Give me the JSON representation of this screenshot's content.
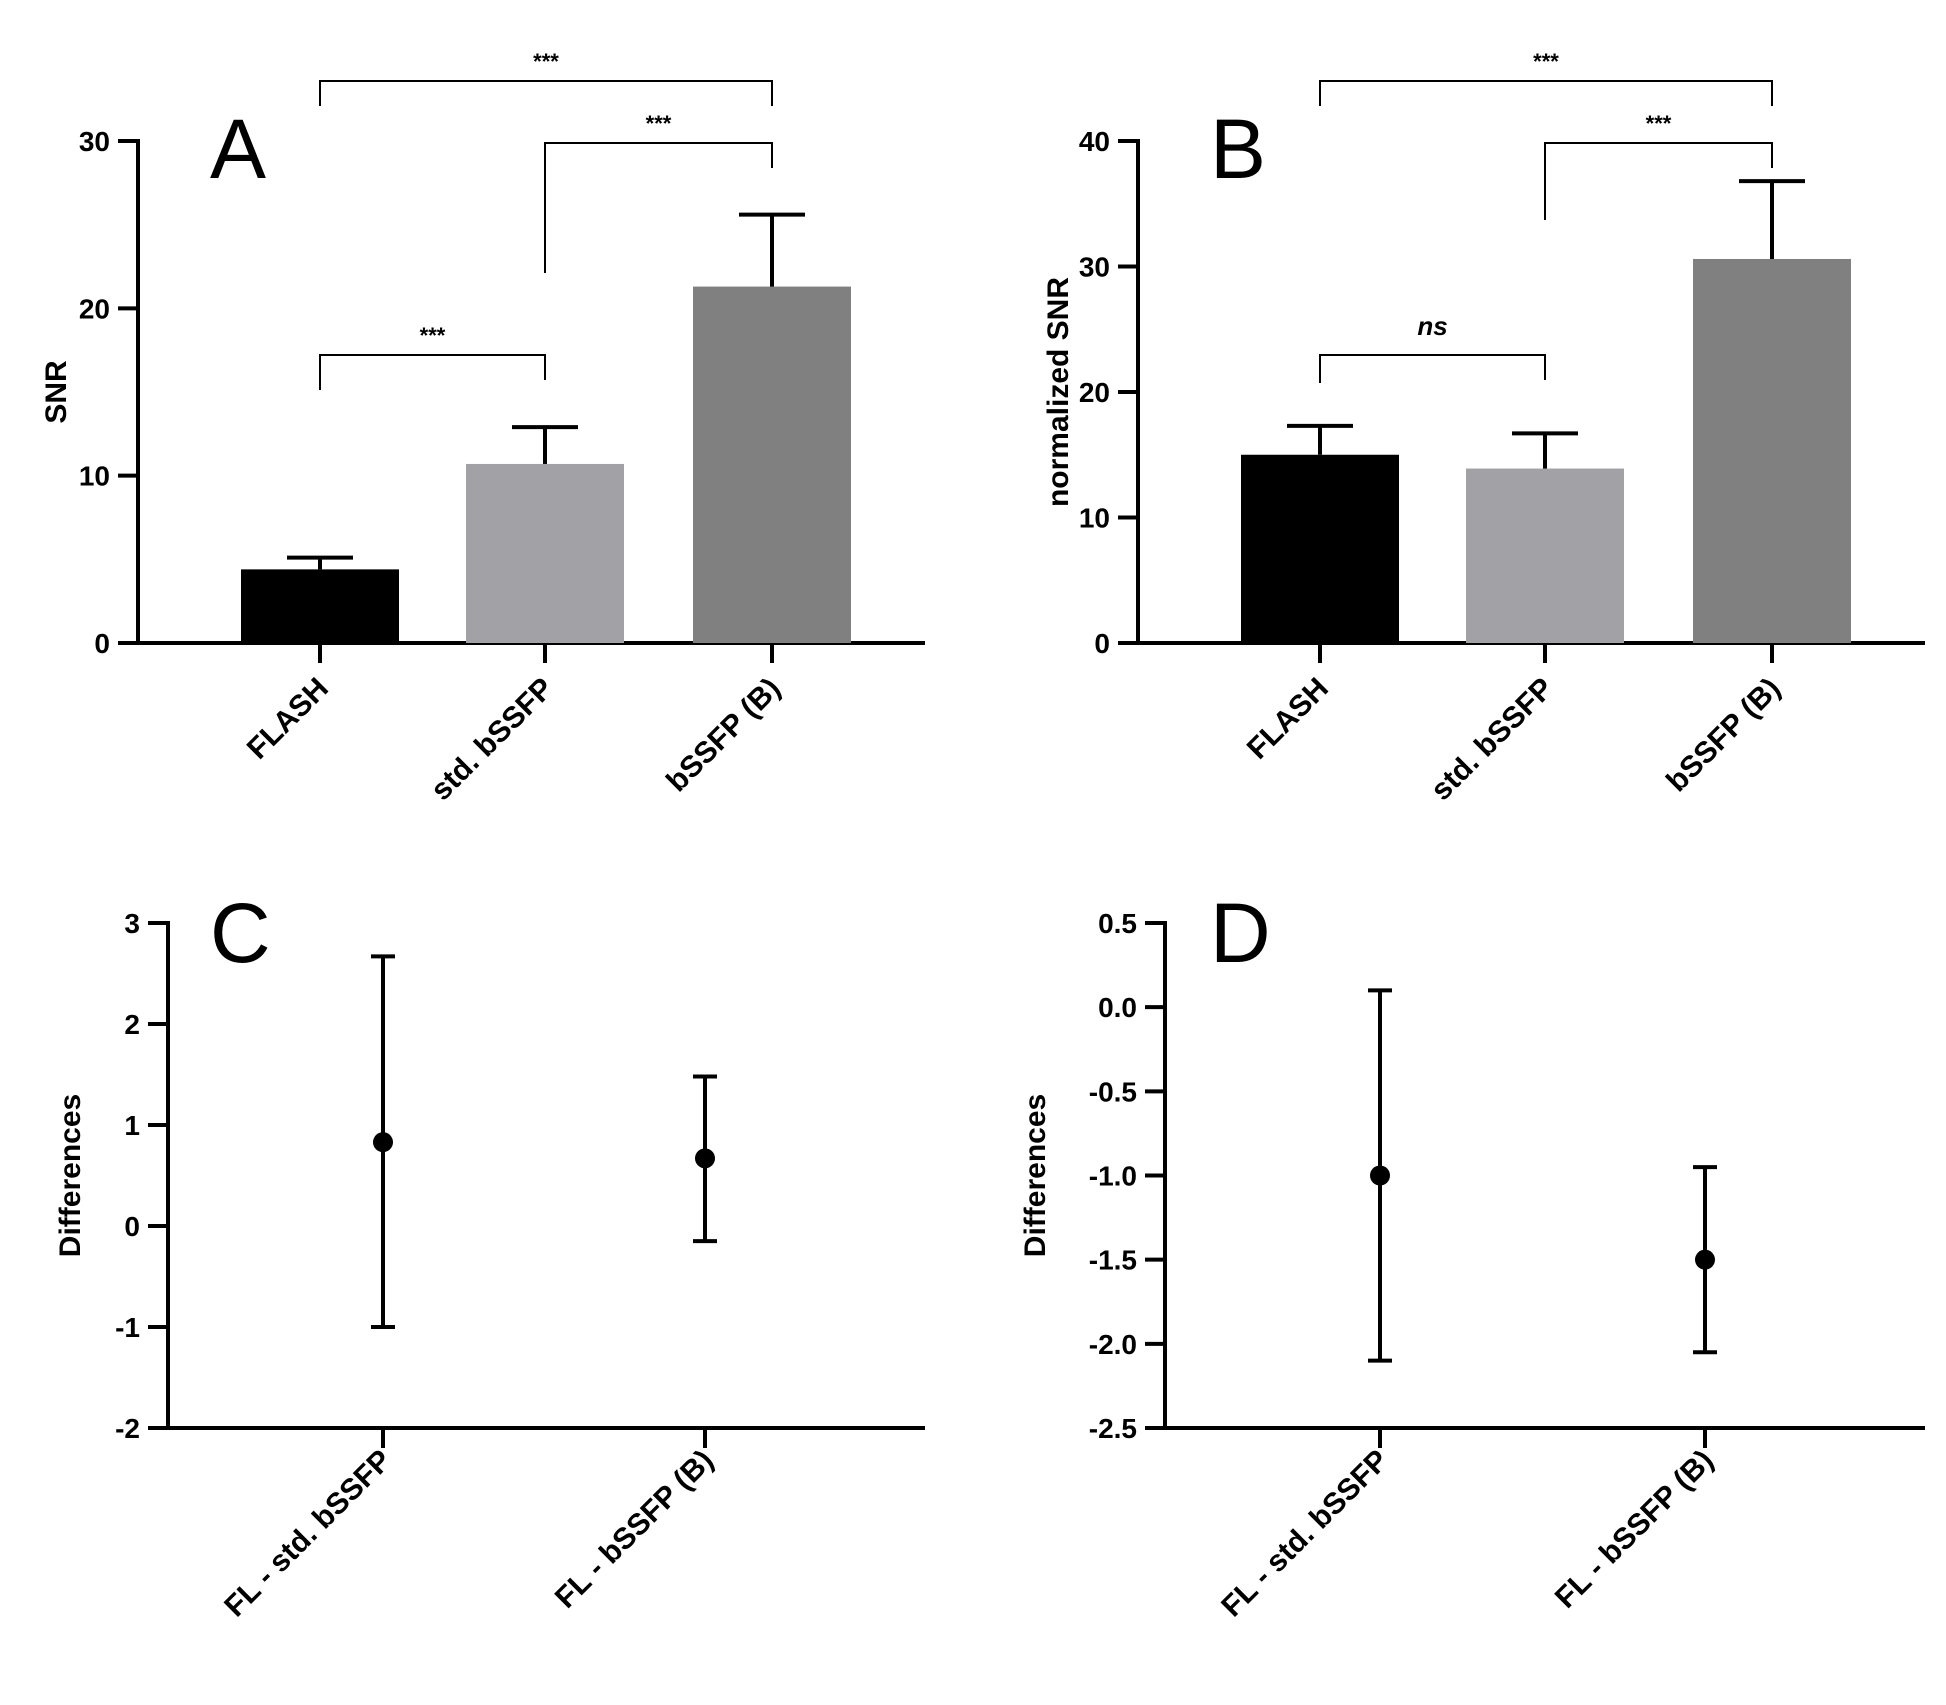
{
  "chart_data": [
    {
      "panel": "A",
      "type": "bar",
      "ylabel": "SNR",
      "ylim": [
        0,
        30
      ],
      "yticks": [
        0,
        10,
        20,
        30
      ],
      "categories": [
        "FLASH",
        "std. bSSFP",
        "bSSFP (B)"
      ],
      "values": [
        4.4,
        10.7,
        21.3
      ],
      "errors": [
        0.7,
        2.2,
        4.3
      ],
      "colors": [
        "#000000",
        "#a1a1a6",
        "#808080"
      ],
      "significance": [
        {
          "from": 0,
          "to": 1,
          "label": "***"
        },
        {
          "from": 1,
          "to": 2,
          "label": "***"
        },
        {
          "from": 0,
          "to": 2,
          "label": "***"
        }
      ]
    },
    {
      "panel": "B",
      "type": "bar",
      "ylabel": "normalized SNR",
      "ylim": [
        0,
        40
      ],
      "yticks": [
        0,
        10,
        20,
        30,
        40
      ],
      "categories": [
        "FLASH",
        "std. bSSFP",
        "bSSFP (B)"
      ],
      "values": [
        15.0,
        13.9,
        30.6
      ],
      "errors": [
        2.3,
        2.8,
        6.2
      ],
      "colors": [
        "#000000",
        "#a1a1a6",
        "#808080"
      ],
      "significance": [
        {
          "from": 0,
          "to": 1,
          "label": "ns"
        },
        {
          "from": 1,
          "to": 2,
          "label": "***"
        },
        {
          "from": 0,
          "to": 2,
          "label": "***"
        }
      ]
    },
    {
      "panel": "C",
      "type": "scatter",
      "ylabel": "Differences",
      "ylim": [
        -2,
        3
      ],
      "yticks": [
        -2,
        -1,
        0,
        1,
        2,
        3
      ],
      "ytick_labels": [
        "-2",
        "-1",
        "0",
        "1",
        "2",
        "3"
      ],
      "categories": [
        "FL - std. bSSFP",
        "FL - bSSFP (B)"
      ],
      "values": [
        0.83,
        0.67
      ],
      "lower": [
        -1.0,
        -0.15
      ],
      "upper": [
        2.67,
        1.48
      ]
    },
    {
      "panel": "D",
      "type": "scatter",
      "ylabel": "Differences",
      "ylim": [
        -2.5,
        0.5
      ],
      "yticks": [
        -2.5,
        -2.0,
        -1.5,
        -1.0,
        -0.5,
        0.0,
        0.5
      ],
      "ytick_labels": [
        "-2.5",
        "-2.0",
        "-1.5",
        "-1.0",
        "-0.5",
        "0.0",
        "0.5"
      ],
      "categories": [
        "FL - std. bSSFP",
        "FL - bSSFP (B)"
      ],
      "values": [
        -1.0,
        -1.5
      ],
      "lower": [
        -2.1,
        -2.05
      ],
      "upper": [
        0.1,
        -0.95
      ]
    }
  ]
}
